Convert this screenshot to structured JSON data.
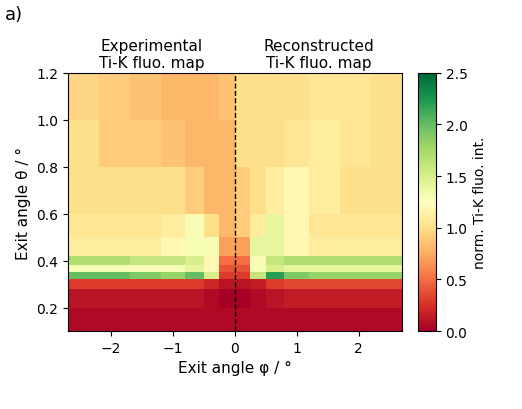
{
  "chart_data": {
    "type": "heatmap",
    "panel_label": "a)",
    "titles": [
      {
        "text": "Experimental\nTi-K fluo. map",
        "side": "left"
      },
      {
        "text": "Reconstructed\nTi-K fluo. map",
        "side": "right"
      }
    ],
    "x_label": "Exit angle φ / °",
    "y_label": "Exit angle θ / °",
    "divider_x": 0,
    "divider_line_style": "dashed",
    "xlim": [
      -2.7,
      2.7
    ],
    "ylim": [
      0.1,
      1.2
    ],
    "xticks": [
      {
        "value": -2,
        "label": "−2"
      },
      {
        "value": -1,
        "label": "−1"
      },
      0,
      1,
      2
    ],
    "yticks": [
      0.2,
      0.4,
      0.6,
      0.8,
      {
        "value": 1,
        "label": "1.0"
      },
      1.2
    ],
    "x_edges": [
      -2.7,
      -2.2,
      -1.7,
      -1.2,
      -0.8,
      -0.5,
      -0.25,
      0,
      0.25,
      0.5,
      0.8,
      1.2,
      1.7,
      2.2,
      2.7
    ],
    "y_edges": [
      0.1,
      0.2,
      0.28,
      0.32,
      0.35,
      0.38,
      0.42,
      0.5,
      0.6,
      0.8,
      1.0,
      1.2
    ],
    "cells": [
      [
        0.05,
        0.05,
        0.05,
        0.05,
        0.05,
        0.05,
        0.05,
        0.05,
        0.05,
        0.05,
        0.05,
        0.05,
        0.05,
        0.05
      ],
      [
        0.1,
        0.1,
        0.1,
        0.1,
        0.1,
        0.05,
        0.0,
        0.0,
        0.05,
        0.1,
        0.15,
        0.15,
        0.15,
        0.15
      ],
      [
        0.3,
        0.3,
        0.3,
        0.3,
        0.3,
        0.2,
        0.1,
        0.1,
        0.15,
        0.3,
        0.35,
        0.35,
        0.35,
        0.35
      ],
      [
        2.0,
        2.0,
        1.9,
        1.8,
        2.0,
        1.5,
        0.3,
        0.3,
        1.6,
        2.2,
        1.9,
        1.8,
        1.8,
        1.8
      ],
      [
        1.3,
        1.3,
        1.3,
        1.3,
        1.4,
        1.2,
        0.4,
        0.4,
        1.3,
        1.5,
        1.4,
        1.4,
        1.4,
        1.4
      ],
      [
        1.7,
        1.7,
        1.6,
        1.6,
        1.5,
        1.2,
        0.5,
        0.5,
        1.3,
        1.6,
        1.7,
        1.7,
        1.7,
        1.7
      ],
      [
        1.1,
        1.1,
        1.1,
        1.2,
        1.3,
        1.3,
        0.7,
        0.7,
        1.4,
        1.4,
        1.2,
        1.1,
        1.1,
        1.1
      ],
      [
        1.05,
        1.05,
        1.05,
        1.1,
        1.3,
        1.0,
        0.8,
        0.9,
        1.1,
        1.4,
        1.2,
        1.05,
        1.05,
        1.05
      ],
      [
        1.0,
        1.0,
        1.0,
        1.0,
        0.9,
        0.8,
        0.8,
        0.9,
        1.0,
        1.1,
        1.2,
        1.1,
        1.0,
        1.0
      ],
      [
        1.0,
        0.9,
        0.9,
        0.85,
        0.8,
        0.8,
        0.8,
        1.0,
        1.0,
        1.0,
        1.05,
        1.1,
        1.05,
        1.0
      ],
      [
        0.95,
        0.9,
        0.85,
        0.8,
        0.8,
        0.8,
        0.85,
        1.0,
        1.0,
        1.0,
        1.0,
        1.05,
        1.05,
        1.0
      ]
    ],
    "colorbar_label": "norm. Ti-K fluo. int.",
    "colorbar_range": [
      0,
      2.5
    ],
    "colorbar_ticks": [
      {
        "value": 0,
        "label": "0.0"
      },
      0.5,
      {
        "value": 1,
        "label": "1.0"
      },
      1.5,
      {
        "value": 2,
        "label": "2.0"
      },
      2.5
    ]
  }
}
